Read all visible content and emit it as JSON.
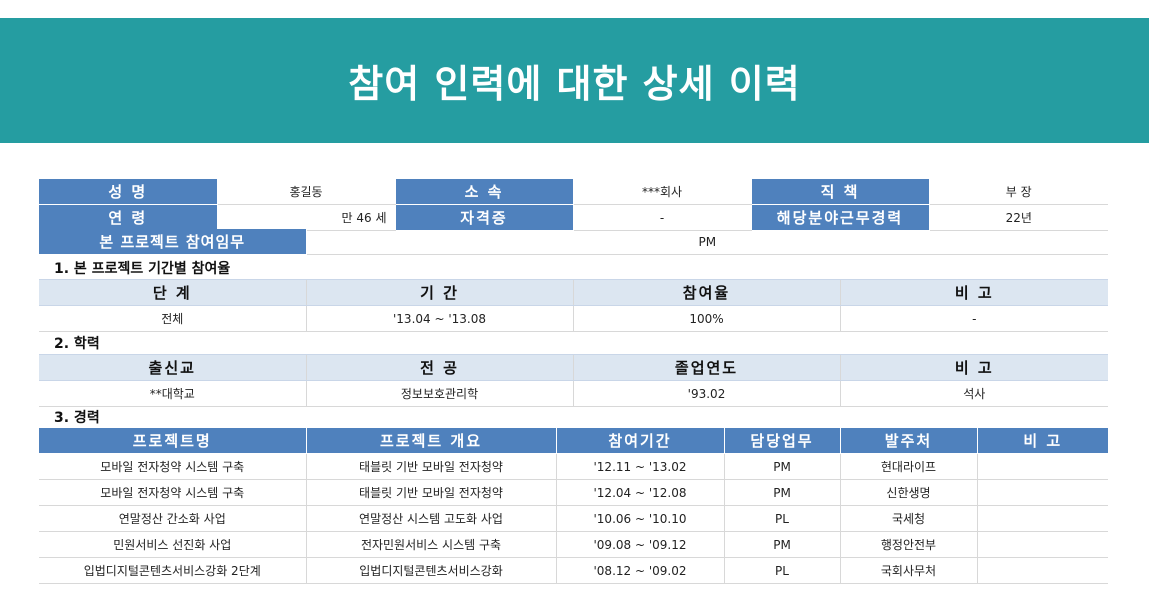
{
  "title": "참여 인력에 대한 상세 이력",
  "profile": {
    "name_label": "성 명",
    "name_value": "홍길동",
    "affiliation_label": "소 속",
    "affiliation_value": "***회사",
    "position_label": "직 책",
    "position_value": "부 장",
    "age_label": "연 령",
    "age_value": "만  46 세",
    "license_label": "자격증",
    "license_value": "-",
    "career_label": "해당분야근무경력",
    "career_value": "22년",
    "role_label": "본 프로젝트 참여임무",
    "role_value": "PM"
  },
  "section1": {
    "title": "1. 본 프로젝트 기간별 참여율",
    "headers": [
      "단 계",
      "기 간",
      "참여율",
      "비 고"
    ],
    "rows": [
      [
        "전체",
        "'13.04  ~ '13.08",
        "100%",
        "-"
      ]
    ]
  },
  "section2": {
    "title": "2. 학력",
    "headers": [
      "출신교",
      "전 공",
      "졸업연도",
      "비 고"
    ],
    "rows": [
      [
        "**대학교",
        "정보보호관리학",
        "'93.02",
        "석사"
      ]
    ]
  },
  "section3": {
    "title": "3. 경력",
    "headers": [
      "프로젝트명",
      "프로젝트 개요",
      "참여기간",
      "담당업무",
      "발주처",
      "비 고"
    ],
    "rows": [
      [
        "모바일 전자청약 시스템 구축",
        "태블릿 기반 모바일 전자청약",
        "'12.11  ~ '13.02",
        "PM",
        "현대라이프",
        ""
      ],
      [
        "모바일 전자청약 시스템 구축",
        "태블릿 기반 모바일 전자청약",
        "'12.04  ~ '12.08",
        "PM",
        "신한생명",
        ""
      ],
      [
        "연말정산 간소화 사업",
        "연말정산 시스템 고도화 사업",
        "'10.06  ~ '10.10",
        "PL",
        "국세청",
        ""
      ],
      [
        "민원서비스 선진화 사업",
        "전자민원서비스 시스템 구축",
        "'09.08  ~ '09.12",
        "PM",
        "행정안전부",
        ""
      ],
      [
        "입법디지털콘텐츠서비스강화 2단계",
        "입법디지털콘텐츠서비스강화",
        "'08.12  ~ '09.02",
        "PL",
        "국회사무처",
        ""
      ]
    ]
  }
}
